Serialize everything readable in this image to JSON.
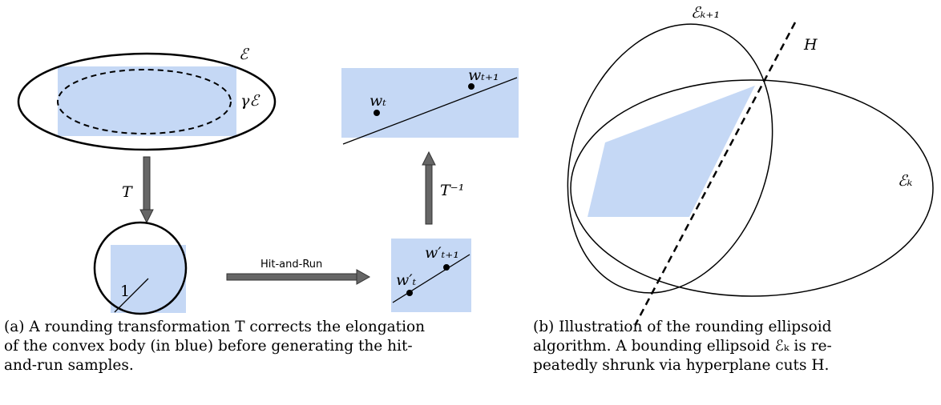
{
  "panel_a": {
    "ellipse_label": "ℰ",
    "inner_label": "γℰ",
    "transform": "T",
    "radius": "1",
    "method": "Hit-and-Run",
    "sample_prime_t": "w′ₜ",
    "sample_prime_t1": "w′ₜ₊₁",
    "inverse_transform": "T⁻¹",
    "sample_t": "wₜ",
    "sample_t1": "wₜ₊₁",
    "caption": [
      "(a) A rounding transformation T corrects the elongation",
      "of the convex body (in blue) before generating the hit-",
      "and-run samples."
    ]
  },
  "panel_b": {
    "ellipse_next": "ℰₖ₊₁",
    "hyperplane": "H",
    "ellipse_current": "ℰₖ",
    "caption": [
      "(b) Illustration of the rounding ellipsoid",
      "algorithm. A bounding ellipsoid ℰₖ is re-",
      "peatedly shrunk via hyperplane cuts H."
    ]
  }
}
